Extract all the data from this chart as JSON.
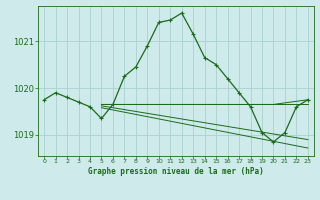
{
  "title": "Graphe pression niveau de la mer (hPa)",
  "background_color": "#ceeaea",
  "grid_color": "#add4d4",
  "line_color": "#1a6b1a",
  "xlim": [
    -0.5,
    23.5
  ],
  "ylim": [
    1018.55,
    1021.75
  ],
  "yticks": [
    1019,
    1020,
    1021
  ],
  "xtick_labels": [
    "0",
    "1",
    "2",
    "3",
    "4",
    "5",
    "6",
    "7",
    "8",
    "9",
    "10",
    "11",
    "12",
    "13",
    "14",
    "15",
    "16",
    "17",
    "18",
    "19",
    "20",
    "21",
    "22",
    "23"
  ],
  "series_main": {
    "x": [
      0,
      1,
      2,
      3,
      4,
      5,
      6,
      7,
      8,
      9,
      10,
      11,
      12,
      13,
      14,
      15,
      16,
      17,
      18,
      19,
      20,
      21,
      22,
      23
    ],
    "y": [
      1019.75,
      1019.9,
      1019.8,
      1019.7,
      1019.6,
      1019.35,
      1019.65,
      1020.25,
      1020.45,
      1020.9,
      1021.4,
      1021.45,
      1021.6,
      1021.15,
      1020.65,
      1020.5,
      1020.2,
      1019.9,
      1019.6,
      1019.05,
      1018.85,
      1019.05,
      1019.6,
      1019.75
    ]
  },
  "series_flat": {
    "x": [
      5,
      23
    ],
    "y": [
      1019.65,
      1019.65
    ]
  },
  "series_diag1": {
    "x": [
      5,
      20,
      23
    ],
    "y": [
      1019.65,
      1019.65,
      1019.75
    ]
  },
  "series_diag2": {
    "x": [
      5,
      23
    ],
    "y": [
      1019.62,
      1018.9
    ]
  },
  "series_diag3": {
    "x": [
      5,
      23
    ],
    "y": [
      1019.58,
      1018.72
    ]
  }
}
